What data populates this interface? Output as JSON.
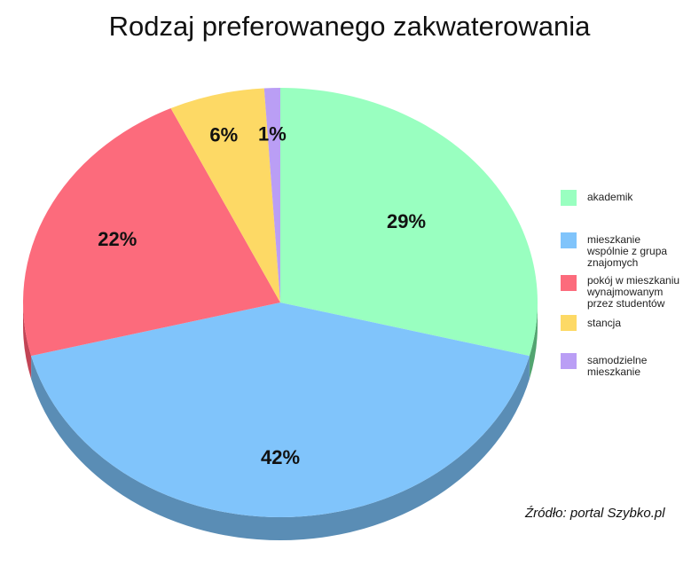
{
  "chart_data": {
    "type": "pie",
    "title": "Rodzaj preferowanego zakwaterowania",
    "categories": [
      "akademik",
      "mieszkanie wspólnie z grupa znajomych",
      "pokój w mieszkaniu wynajmowanym przez studentów",
      "stancja",
      "samodzielne mieszkanie"
    ],
    "values": [
      29,
      42,
      22,
      6,
      1
    ],
    "value_labels": [
      "29%",
      "42%",
      "22%",
      "6%",
      "1%"
    ],
    "colors": [
      "#99ffc0",
      "#80c4fb",
      "#fc6b7c",
      "#fdd965",
      "#ba9ef5"
    ],
    "side_colors": [
      "#52a470",
      "#5a8db5",
      "#c24455",
      "#b89a3a",
      "#7d66b0"
    ],
    "legend_position": "right",
    "three_d": true
  },
  "source": "Źródło: portal Szybko.pl"
}
